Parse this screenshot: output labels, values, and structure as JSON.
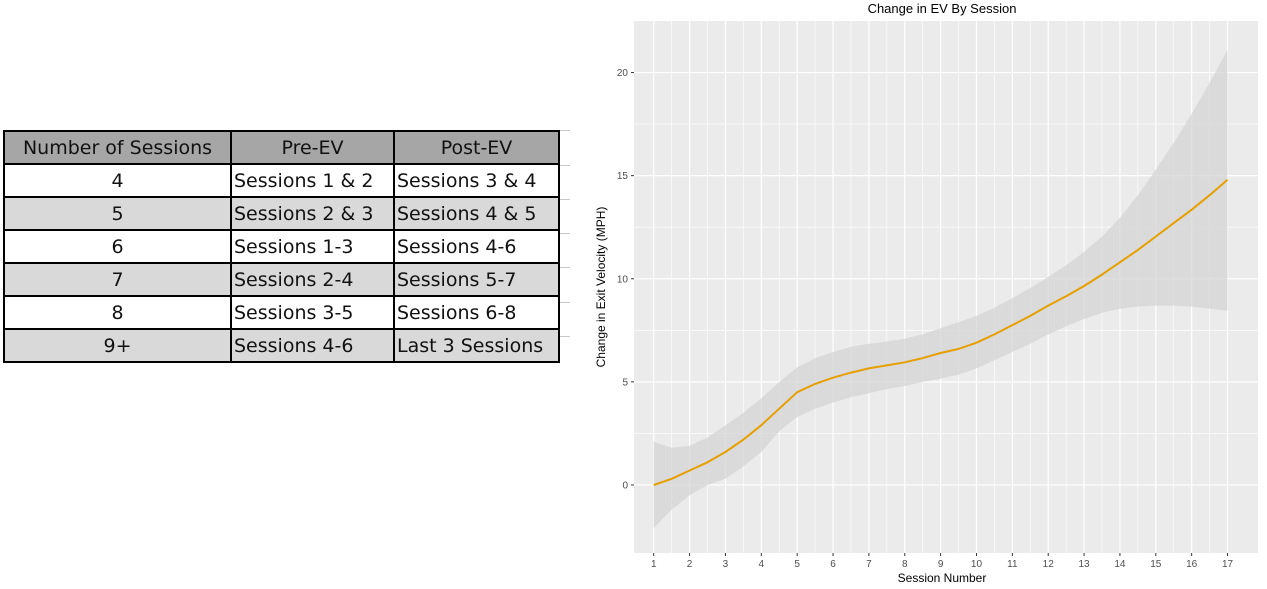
{
  "table": {
    "headers": [
      "Number of Sessions",
      "Pre-EV",
      "Post-EV"
    ],
    "rows": [
      [
        "4",
        "Sessions 1 & 2",
        "Sessions 3 & 4"
      ],
      [
        "5",
        "Sessions 2 & 3",
        "Sessions 4 & 5"
      ],
      [
        "6",
        "Sessions 1-3",
        "Sessions 4-6"
      ],
      [
        "7",
        "Sessions 2-4",
        "Sessions 5-7"
      ],
      [
        "8",
        "Sessions 3-5",
        "Sessions 6-8"
      ],
      [
        "9+",
        "Sessions 4-6",
        "Last 3 Sessions"
      ]
    ],
    "header_bg": "#a6a6a6",
    "alt_row_bg": "#d9d9d9"
  },
  "chart_data": {
    "type": "line",
    "title": "Change in EV By Session",
    "xlabel": "Session Number",
    "ylabel": "Change in Exit Velocity (MPH)",
    "x": [
      1,
      1.5,
      2,
      2.5,
      3,
      3.5,
      4,
      4.5,
      5,
      5.5,
      6,
      6.5,
      7,
      7.5,
      8,
      8.5,
      9,
      9.5,
      10,
      10.5,
      11,
      11.5,
      12,
      12.5,
      13,
      13.5,
      14,
      14.5,
      15,
      15.5,
      16,
      16.5,
      17
    ],
    "series": [
      {
        "values": [
          0.0,
          0.3,
          0.7,
          1.1,
          1.6,
          2.2,
          2.9,
          3.7,
          4.5,
          4.9,
          5.2,
          5.45,
          5.65,
          5.8,
          5.95,
          6.15,
          6.4,
          6.6,
          6.9,
          7.3,
          7.75,
          8.2,
          8.7,
          9.15,
          9.65,
          10.2,
          10.8,
          11.4,
          12.05,
          12.7,
          13.35,
          14.05,
          14.8
        ],
        "lower": [
          -2.1,
          -1.2,
          -0.5,
          0.0,
          0.3,
          0.9,
          1.6,
          2.6,
          3.3,
          3.7,
          4.0,
          4.25,
          4.45,
          4.65,
          4.8,
          5.0,
          5.15,
          5.35,
          5.65,
          6.05,
          6.45,
          6.85,
          7.3,
          7.7,
          8.05,
          8.35,
          8.55,
          8.65,
          8.7,
          8.7,
          8.65,
          8.55,
          8.45
        ],
        "upper": [
          2.1,
          1.8,
          1.9,
          2.3,
          2.9,
          3.5,
          4.2,
          5.0,
          5.7,
          6.15,
          6.45,
          6.7,
          6.85,
          6.95,
          7.1,
          7.3,
          7.6,
          7.9,
          8.2,
          8.6,
          9.05,
          9.55,
          10.1,
          10.65,
          11.3,
          12.05,
          12.95,
          14.05,
          15.3,
          16.6,
          18.0,
          19.5,
          21.1
        ]
      }
    ],
    "xlim": [
      0.45,
      17.85
    ],
    "ylim": [
      -3.3,
      22.5
    ],
    "x_ticks": [
      1,
      2,
      3,
      4,
      5,
      6,
      7,
      8,
      9,
      10,
      11,
      12,
      13,
      14,
      15,
      16,
      17
    ],
    "y_ticks": [
      0,
      5,
      10,
      15,
      20
    ],
    "x_tick_labels": [
      "1",
      "2",
      "3",
      "4",
      "5",
      "6",
      "7",
      "8",
      "9",
      "10",
      "11",
      "12",
      "13",
      "14",
      "15",
      "16",
      "17"
    ],
    "y_tick_labels": [
      "0",
      "5",
      "10",
      "15",
      "20"
    ],
    "grid": true,
    "line_color": "#e69f00",
    "ribbon_color": "#d4d4d4",
    "panel_bg": "#ebebeb",
    "grid_color": "#ffffff"
  }
}
